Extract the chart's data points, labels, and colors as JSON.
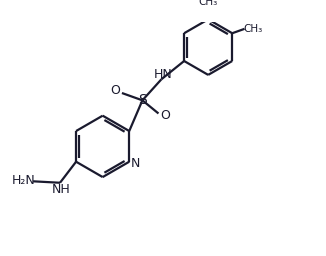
{
  "background_color": "#ffffff",
  "bond_color": "#1a1a2e",
  "text_color": "#1a1a2e",
  "line_width": 1.6,
  "figsize": [
    3.26,
    2.56
  ],
  "dpi": 100,
  "xlim": [
    0,
    10
  ],
  "ylim": [
    0,
    8
  ]
}
